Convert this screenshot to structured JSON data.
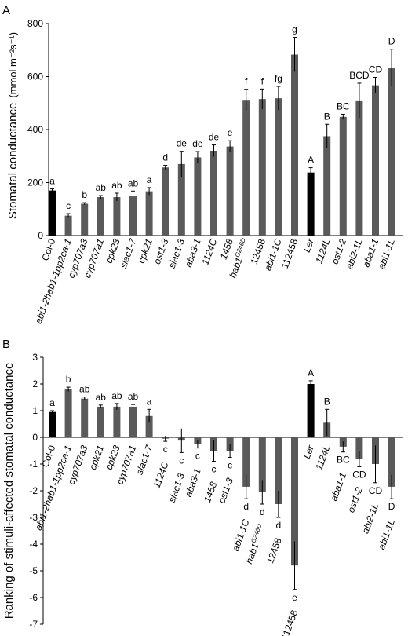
{
  "chart_data": [
    {
      "type": "bar",
      "panel_label": "A",
      "ylabel": "Stomatal conductance",
      "ylabel_unit": "(mmol m⁻²s⁻¹)",
      "ylim": [
        0,
        800
      ],
      "yticks": [
        0,
        200,
        400,
        600,
        800
      ],
      "colors": {
        "black": "#000000",
        "grey": "#5a5a5a"
      },
      "bars": [
        {
          "label": "Col-0",
          "value": 170,
          "err": 6,
          "sig": "a",
          "color": "black",
          "italic": false
        },
        {
          "label": "abi1-2hab1-1pp2ca-1",
          "value": 75,
          "err": 8,
          "sig": "c",
          "color": "grey",
          "italic": true
        },
        {
          "label": "cyp707a3",
          "value": 120,
          "err": 4,
          "sig": "b",
          "color": "grey",
          "italic": true
        },
        {
          "label": "cyp707a1",
          "value": 145,
          "err": 6,
          "sig": "ab",
          "color": "grey",
          "italic": true
        },
        {
          "label": "cpk23",
          "value": 145,
          "err": 15,
          "sig": "ab",
          "color": "grey",
          "italic": true
        },
        {
          "label": "slac1-7",
          "value": 148,
          "err": 20,
          "sig": "ab",
          "color": "grey",
          "italic": true
        },
        {
          "label": "cpk21",
          "value": 167,
          "err": 14,
          "sig": "a",
          "color": "grey",
          "italic": true
        },
        {
          "label": "ost1-3",
          "value": 257,
          "err": 8,
          "sig": "d",
          "color": "grey",
          "italic": true
        },
        {
          "label": "slac1-3",
          "value": 270,
          "err": 48,
          "sig": "de",
          "color": "grey",
          "italic": true
        },
        {
          "label": "aba3-1",
          "value": 295,
          "err": 22,
          "sig": "de",
          "color": "grey",
          "italic": true
        },
        {
          "label": "1124C",
          "value": 320,
          "err": 22,
          "sig": "de",
          "color": "grey",
          "italic": true
        },
        {
          "label": "1458",
          "value": 336,
          "err": 22,
          "sig": "e",
          "color": "grey",
          "italic": true
        },
        {
          "label": "hab1",
          "label_sup": "G246D",
          "value": 512,
          "err": 40,
          "sig": "f",
          "color": "grey",
          "italic": true
        },
        {
          "label": "12458",
          "value": 515,
          "err": 38,
          "sig": "f",
          "color": "grey",
          "italic": false
        },
        {
          "label": "abi1-1C",
          "value": 518,
          "err": 45,
          "sig": "fg",
          "color": "grey",
          "italic": true
        },
        {
          "label": "112458",
          "value": 683,
          "err": 65,
          "sig": "g",
          "color": "grey",
          "italic": false
        },
        {
          "label": "Ler",
          "value": 238,
          "err": 18,
          "sig": "A",
          "color": "black",
          "italic": true
        },
        {
          "label": "1124L",
          "value": 375,
          "err": 45,
          "sig": "B",
          "color": "grey",
          "italic": true
        },
        {
          "label": "ost1-2",
          "value": 448,
          "err": 10,
          "sig": "BC",
          "color": "grey",
          "italic": true
        },
        {
          "label": "abi2-1L",
          "value": 510,
          "err": 65,
          "sig": "BCD",
          "color": "grey",
          "italic": true
        },
        {
          "label": "aba1-1",
          "value": 567,
          "err": 30,
          "sig": "CD",
          "color": "grey",
          "italic": true
        },
        {
          "label": "abi1-1L",
          "value": 633,
          "err": 70,
          "sig": "D",
          "color": "grey",
          "italic": true
        }
      ]
    },
    {
      "type": "bar",
      "panel_label": "B",
      "ylabel": "Ranking of stimuli-affected stomatal conductance",
      "ylim": [
        -7,
        3
      ],
      "yticks": [
        3,
        2,
        1,
        0,
        -1,
        -2,
        -3,
        -4,
        -5,
        -6,
        -7
      ],
      "colors": {
        "black": "#000000",
        "grey": "#5a5a5a"
      },
      "bars": [
        {
          "label": "Col-0",
          "value": 0.95,
          "err": 0.05,
          "sig": "a",
          "color": "black",
          "italic": false
        },
        {
          "label": "abi1-2hab1-1pp2ca-1",
          "value": 1.8,
          "err": 0.08,
          "sig": "b",
          "color": "grey",
          "italic": true
        },
        {
          "label": "cyp707a3",
          "value": 1.45,
          "err": 0.06,
          "sig": "ab",
          "color": "grey",
          "italic": true
        },
        {
          "label": "cpk21",
          "value": 1.15,
          "err": 0.06,
          "sig": "ab",
          "color": "grey",
          "italic": true
        },
        {
          "label": "cpk23",
          "value": 1.15,
          "err": 0.12,
          "sig": "ab",
          "color": "grey",
          "italic": true
        },
        {
          "label": "cyp707a1",
          "value": 1.15,
          "err": 0.08,
          "sig": "ab",
          "color": "grey",
          "italic": true
        },
        {
          "label": "slac1-7",
          "value": 0.8,
          "err": 0.25,
          "sig": "a",
          "color": "grey",
          "italic": true
        },
        {
          "label": "1124C",
          "value": -0.05,
          "err": 0.1,
          "sig": "c",
          "color": "grey",
          "italic": true
        },
        {
          "label": "slac1-3",
          "value": -0.12,
          "err": 0.45,
          "sig": "c",
          "color": "grey",
          "italic": true
        },
        {
          "label": "aba3-1",
          "value": -0.25,
          "err": 0.15,
          "sig": "c",
          "color": "grey",
          "italic": true
        },
        {
          "label": "1458",
          "value": -0.5,
          "err": 0.4,
          "sig": "c",
          "color": "grey",
          "italic": true
        },
        {
          "label": "ost1-3",
          "value": -0.5,
          "err": 0.25,
          "sig": "c",
          "color": "grey",
          "italic": true
        },
        {
          "label": "abi1-1C",
          "value": -1.85,
          "err": 0.45,
          "sig": "d",
          "color": "grey",
          "italic": true
        },
        {
          "label": "hab1",
          "label_sup": "G246D",
          "value": -2.05,
          "err": 0.45,
          "sig": "d",
          "color": "grey",
          "italic": true
        },
        {
          "label": "12458",
          "value": -2.5,
          "err": 0.5,
          "sig": "d",
          "color": "grey",
          "italic": false
        },
        {
          "label": "112458",
          "value": -4.8,
          "err": 0.9,
          "sig": "e",
          "color": "grey",
          "italic": false
        },
        {
          "label": "Ler",
          "value": 2.0,
          "err": 0.12,
          "sig": "A",
          "color": "black",
          "italic": true
        },
        {
          "label": "1124L",
          "value": 0.55,
          "err": 0.5,
          "sig": "B",
          "color": "grey",
          "italic": true
        },
        {
          "label": "aba1-1",
          "value": -0.35,
          "err": 0.2,
          "sig": "BC",
          "color": "grey",
          "italic": true
        },
        {
          "label": "ost1-2",
          "value": -0.8,
          "err": 0.3,
          "sig": "CD",
          "color": "grey",
          "italic": true
        },
        {
          "label": "abi2-1L",
          "value": -1.0,
          "err": 0.7,
          "sig": "CD",
          "color": "grey",
          "italic": true
        },
        {
          "label": "abi1-1L",
          "value": -1.85,
          "err": 0.45,
          "sig": "D",
          "color": "grey",
          "italic": true
        }
      ]
    }
  ]
}
